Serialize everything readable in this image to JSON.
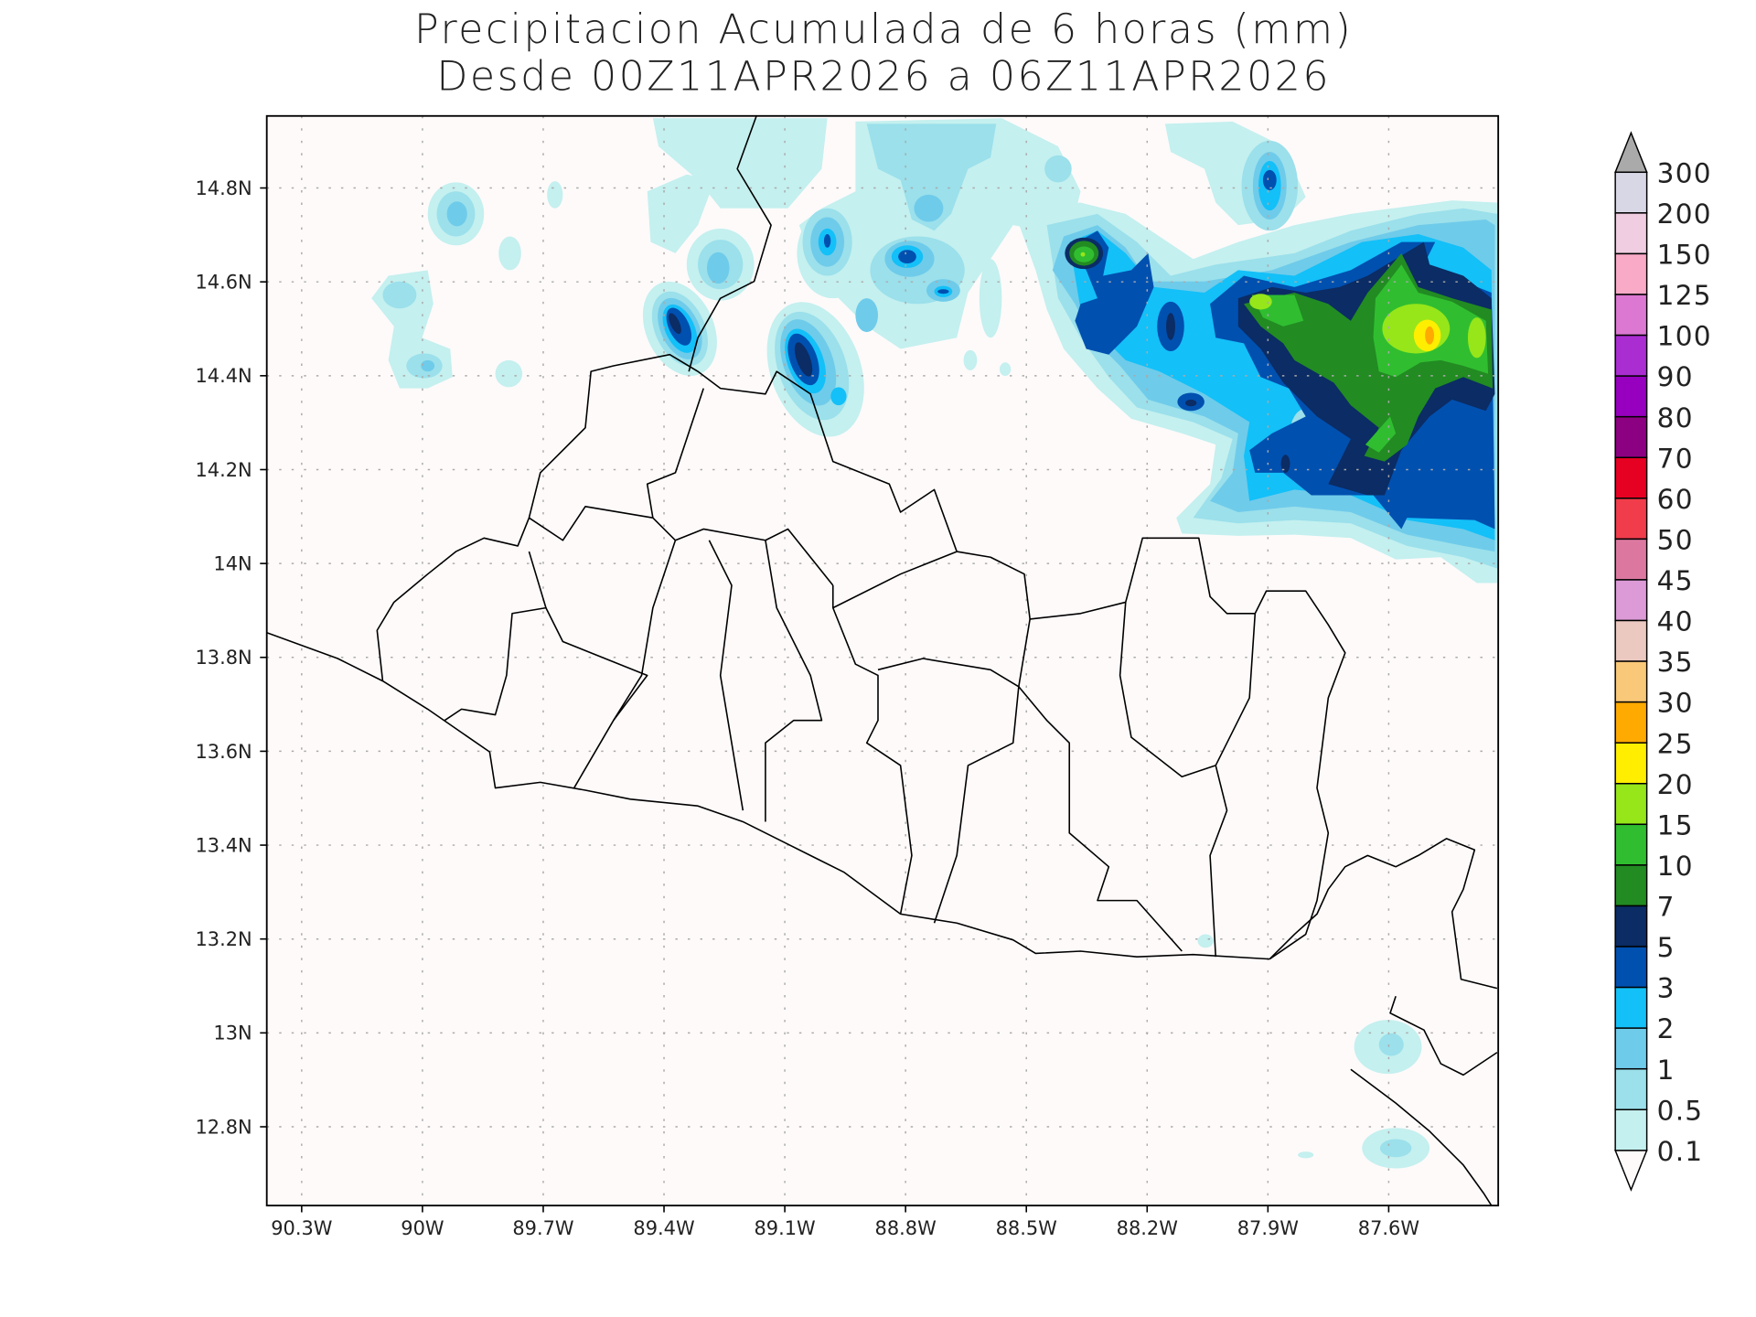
{
  "title": {
    "line1": "Precipitacion Acumulada de 6 horas (mm)",
    "line2": "Desde 00Z11APR2026 a 06Z11APR2026"
  },
  "map": {
    "type": "filled-contour map",
    "region": "El Salvador",
    "background_color": "#fffafa",
    "grid": true,
    "lon_range": [
      -90.39,
      -87.33
    ],
    "lat_range": [
      12.63,
      14.95
    ],
    "lon_ticks": [
      "90.3W",
      "90W",
      "89.7W",
      "89.4W",
      "89.1W",
      "88.8W",
      "88.5W",
      "88.2W",
      "87.9W",
      "87.6W"
    ],
    "lat_ticks": [
      "14.8N",
      "14.6N",
      "14.4N",
      "14.2N",
      "14N",
      "13.8N",
      "13.6N",
      "13.4N",
      "13.2N",
      "13N",
      "12.8N"
    ],
    "max_value_location": "about 14.49N 87.55W, 20-25 mm"
  },
  "colorbar": {
    "orientation": "vertical",
    "placement": "right",
    "labels": [
      "300",
      "200",
      "150",
      "125",
      "100",
      "90",
      "80",
      "70",
      "60",
      "50",
      "45",
      "40",
      "35",
      "30",
      "25",
      "20",
      "15",
      "10",
      "7",
      "5",
      "3",
      "2",
      "1",
      "0.5",
      "0.1"
    ],
    "colors": [
      "#d7d7e6",
      "#f0cde1",
      "#f9aac6",
      "#dc78d2",
      "#aa2dd2",
      "#9600be",
      "#8c0082",
      "#e60022",
      "#f03c4b",
      "#dc78a0",
      "#dc9bd6",
      "#ebc8c0",
      "#f9c878",
      "#ffaa00",
      "#ffee00",
      "#96e61a",
      "#30be30",
      "#228b22",
      "#0b2c64",
      "#0050b0",
      "#13c0f8",
      "#6fcbea",
      "#9be0eb",
      "#c4f0ef"
    ],
    "over_color": "#aaaaaa",
    "under_color": "#fffafa"
  }
}
